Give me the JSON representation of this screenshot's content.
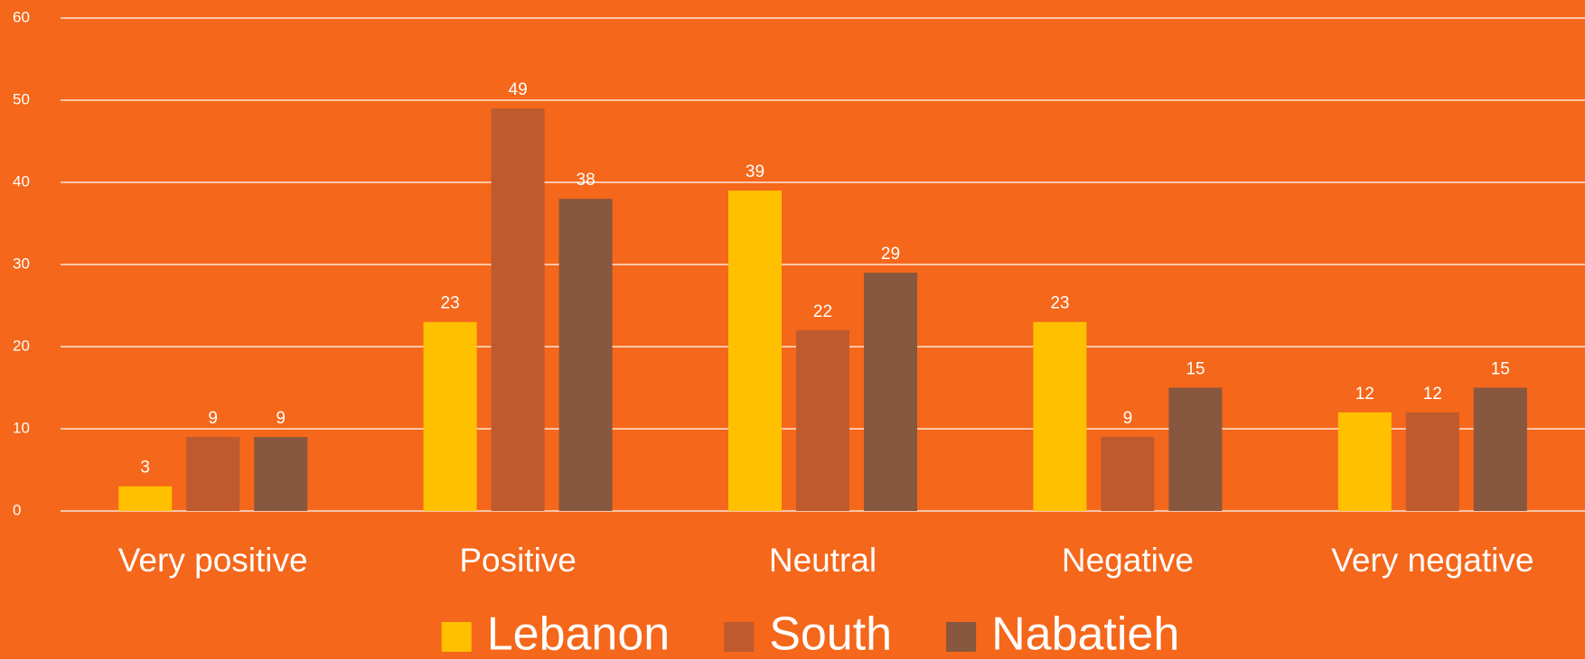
{
  "chart_data": {
    "type": "bar",
    "categories": [
      "Very positive",
      "Positive",
      "Neutral",
      "Negative",
      "Very negative"
    ],
    "series": [
      {
        "name": "Lebanon",
        "color": "#ffc000",
        "values": [
          3,
          23,
          39,
          23,
          12
        ]
      },
      {
        "name": "South",
        "color": "#be5a2e",
        "values": [
          9,
          49,
          22,
          9,
          12
        ]
      },
      {
        "name": "Nabatieh",
        "color": "#87573f",
        "values": [
          9,
          38,
          29,
          15,
          15
        ]
      }
    ],
    "ylim": [
      0,
      60
    ],
    "yticks": [
      0,
      10,
      20,
      30,
      40,
      50,
      60
    ],
    "grid": true,
    "legend": "bottom"
  }
}
